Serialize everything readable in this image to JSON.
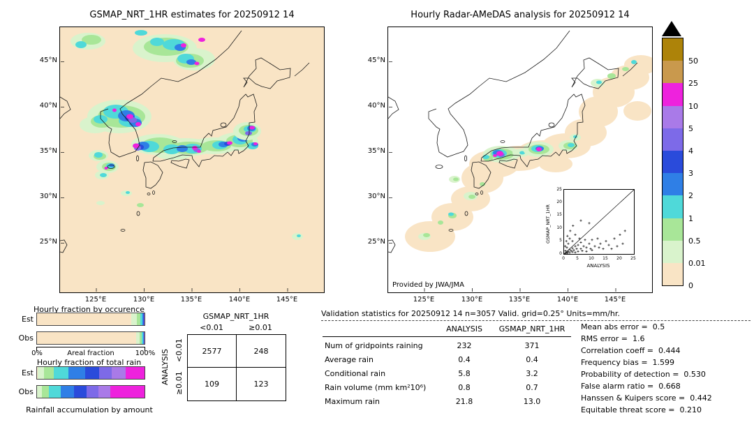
{
  "palette": {
    "trace": "#f9e4c5",
    "p001": "#d9f3cc",
    "p05": "#a8e698",
    "p1": "#4fd9d9",
    "p2": "#2f7fe6",
    "p3": "#2a4bdb",
    "p4": "#7d6ae8",
    "p5": "#a97ae8",
    "p10": "#ee22dd",
    "p25": "#c9994d",
    "p50": "#ad8309"
  },
  "left_map": {
    "title": "GSMAP_NRT_1HR estimates for 20250912 14",
    "lat_ticks": [
      "45°N",
      "40°N",
      "35°N",
      "30°N",
      "25°N"
    ],
    "lon_ticks": [
      "125°E",
      "130°E",
      "135°E",
      "140°E",
      "145°E"
    ]
  },
  "right_map": {
    "title": "Hourly Radar-AMeDAS analysis for 20250912 14",
    "credit": "Provided by JWA/JMA",
    "lat_ticks": [
      "45°N",
      "40°N",
      "35°N",
      "30°N",
      "25°N"
    ],
    "lon_ticks": [
      "125°E",
      "130°E",
      "135°E",
      "140°E",
      "145°E"
    ],
    "inset": {
      "xlabel": "ANALYSIS",
      "ylabel": "GSMAP_NRT_1HR",
      "ticks": [
        "0",
        "5",
        "10",
        "15",
        "20",
        "25"
      ]
    }
  },
  "colorbar": {
    "cells": [
      {
        "color": "#ad8309",
        "label": "50"
      },
      {
        "color": "#c9994d",
        "label": "25"
      },
      {
        "color": "#ee22dd",
        "label": "10"
      },
      {
        "color": "#a97ae8",
        "label": "5"
      },
      {
        "color": "#7d6ae8",
        "label": "4"
      },
      {
        "color": "#2a4bdb",
        "label": "3"
      },
      {
        "color": "#2f7fe6",
        "label": "2"
      },
      {
        "color": "#4fd9d9",
        "label": "1"
      },
      {
        "color": "#a8e698",
        "label": "0.5"
      },
      {
        "color": "#d9f3cc",
        "label": "0.01"
      },
      {
        "color": "#f9e4c5",
        "label": "0"
      }
    ]
  },
  "occurrence": {
    "title": "Hourly fraction by occurence",
    "est_label": "Est",
    "obs_label": "Obs",
    "axis_left": "0%",
    "axis_center": "Areal fraction",
    "axis_right": "100%"
  },
  "totalrain": {
    "title": "Hourly fraction of total rain",
    "est_label": "Est",
    "obs_label": "Obs",
    "caption": "Rainfall accumulation by amount"
  },
  "contingency": {
    "col_header": "GSMAP_NRT_1HR",
    "row_header": "ANALYSIS",
    "col_labels": [
      "<0.01",
      "≥0.01"
    ],
    "row_labels": [
      "<0.01",
      "≥0.01"
    ]
  },
  "validation": {
    "title": "Validation statistics for 20250912 14  n=3057 Valid. grid=0.25° Units=mm/hr.",
    "col_analysis": "ANALYSIS",
    "col_gsmap": "GSMAP_NRT_1HR",
    "rows": [
      {
        "label": "Num of gridpoints raining",
        "analysis": "232",
        "gsmap": "371"
      },
      {
        "label": "Average rain",
        "analysis": "0.4",
        "gsmap": "0.4"
      },
      {
        "label": "Conditional rain",
        "analysis": "5.8",
        "gsmap": "3.2"
      },
      {
        "label": "Rain volume (mm km²10⁶)",
        "analysis": "0.8",
        "gsmap": "0.7"
      },
      {
        "label": "Maximum rain",
        "analysis": "21.8",
        "gsmap": "13.0"
      }
    ],
    "stats": [
      {
        "label": "Mean abs error =",
        "value": "0.5"
      },
      {
        "label": "RMS error =",
        "value": "1.6"
      },
      {
        "label": "Correlation coeff =",
        "value": "0.444"
      },
      {
        "label": "Frequency bias =",
        "value": "1.599"
      },
      {
        "label": "Probability of detection =",
        "value": "0.530"
      },
      {
        "label": "False alarm ratio =",
        "value": "0.668"
      },
      {
        "label": "Hanssen & Kuipers score =",
        "value": "0.442"
      },
      {
        "label": "Equitable threat score =",
        "value": "0.210"
      }
    ]
  },
  "chart_data": [
    {
      "type": "heatmap",
      "title": "GSMAP_NRT_1HR estimates for 20250912 14",
      "x_ticks": [
        "125°E",
        "130°E",
        "135°E",
        "140°E",
        "145°E"
      ],
      "y_ticks": [
        "45°N",
        "40°N",
        "35°N",
        "30°N",
        "25°N"
      ],
      "extent": {
        "lon": [
          121.2,
          148.9
        ],
        "lat": [
          23.4,
          48.8
        ]
      },
      "units": "mm/hr",
      "levels": [
        0,
        0.01,
        0.5,
        1,
        2,
        3,
        4,
        5,
        10,
        25,
        50
      ],
      "level_colors": [
        "#f9e4c5",
        "#d9f3cc",
        "#a8e698",
        "#4fd9d9",
        "#2f7fe6",
        "#2a4bdb",
        "#7d6ae8",
        "#a97ae8",
        "#ee22dd",
        "#c9994d",
        "#ad8309"
      ],
      "description": "GSMaP precipitation: heavy rain clusters over Korea (~38N,126E), northern Sea of Japan (~45N,130E), and a band along 35-37N across western/central Honshu with magenta cores up to 10-25 mm/hr"
    },
    {
      "type": "heatmap",
      "title": "Hourly Radar-AMeDAS analysis for 20250912 14",
      "x_ticks": [
        "125°E",
        "130°E",
        "135°E",
        "140°E",
        "145°E"
      ],
      "y_ticks": [
        "45°N",
        "40°N",
        "35°N",
        "30°N",
        "25°N"
      ],
      "extent": {
        "lon": [
          121.2,
          148.9
        ],
        "lat": [
          23.4,
          48.8
        ]
      },
      "units": "mm/hr",
      "levels": [
        0,
        0.01,
        0.5,
        1,
        2,
        3,
        4,
        5,
        10,
        25,
        50
      ],
      "level_colors": [
        "#f9e4c5",
        "#d9f3cc",
        "#a8e698",
        "#4fd9d9",
        "#2f7fe6",
        "#2a4bdb",
        "#7d6ae8",
        "#a97ae8",
        "#ee22dd",
        "#c9994d",
        "#ad8309"
      ],
      "description": "Radar-AMeDAS analysis: trace-rain band from Okinawa northeast past Kanto, with echo cores 1-25 mm/hr over western Honshu (~34.5N,133E) and central Honshu (~35N,137E)"
    },
    {
      "type": "scatter",
      "title": "GSMAP_NRT_1HR vs ANALYSIS",
      "xlabel": "ANALYSIS",
      "ylabel": "GSMAP_NRT_1HR",
      "xlim": [
        0,
        25
      ],
      "ylim": [
        0,
        25
      ],
      "diagonal": true,
      "points": [
        [
          0.3,
          0.2
        ],
        [
          0.5,
          1.2
        ],
        [
          0.7,
          0.4
        ],
        [
          1,
          0.6
        ],
        [
          1,
          2.5
        ],
        [
          1.2,
          0.3
        ],
        [
          1.5,
          1
        ],
        [
          1.5,
          4
        ],
        [
          2,
          0.5
        ],
        [
          2,
          1.8
        ],
        [
          2,
          6
        ],
        [
          2.5,
          1.2
        ],
        [
          3,
          0.8
        ],
        [
          3,
          2.2
        ],
        [
          3,
          5
        ],
        [
          3.5,
          1.5
        ],
        [
          4,
          0.6
        ],
        [
          4,
          3
        ],
        [
          4,
          7.5
        ],
        [
          4.5,
          2
        ],
        [
          5,
          1
        ],
        [
          5,
          3.5
        ],
        [
          5.5,
          6
        ],
        [
          6,
          2
        ],
        [
          6,
          4.5
        ],
        [
          6,
          13
        ],
        [
          6.5,
          1.2
        ],
        [
          7,
          3
        ],
        [
          7.5,
          5.5
        ],
        [
          8,
          2.5
        ],
        [
          8,
          1
        ],
        [
          9,
          4
        ],
        [
          9,
          12
        ],
        [
          9.5,
          2
        ],
        [
          10,
          5.5
        ],
        [
          10,
          1.5
        ],
        [
          11,
          3
        ],
        [
          12,
          6
        ],
        [
          12.5,
          2.5
        ],
        [
          13,
          4
        ],
        [
          14,
          2
        ],
        [
          15,
          5
        ],
        [
          16,
          3.5
        ],
        [
          17,
          2
        ],
        [
          18,
          6
        ],
        [
          19,
          3
        ],
        [
          20,
          7.5
        ],
        [
          21,
          4
        ],
        [
          21.8,
          9
        ],
        [
          0.4,
          3
        ],
        [
          0.8,
          5
        ],
        [
          1.2,
          7
        ],
        [
          2.2,
          9
        ],
        [
          3.2,
          11
        ]
      ]
    },
    {
      "type": "bar",
      "stacked": true,
      "title": "Hourly fraction by occurence",
      "bins": [
        "0-0.01",
        "0.01-0.5",
        "0.5-1",
        "1-2",
        "2-3",
        "3-4",
        "4-5",
        "5-10",
        "10-25"
      ],
      "colors": [
        "#f9e4c5",
        "#d9f3cc",
        "#a8e698",
        "#4fd9d9",
        "#2f7fe6",
        "#2a4bdb",
        "#7d6ae8",
        "#a97ae8",
        "#ee22dd"
      ],
      "xlabel": "Areal fraction",
      "xlim_labels": [
        "0%",
        "100%"
      ],
      "series": [
        {
          "name": "Est",
          "values": [
            87.9,
            5.2,
            2.9,
            2.0,
            1.0,
            0.5,
            0.3,
            0.2,
            0.0
          ]
        },
        {
          "name": "Obs",
          "values": [
            92.4,
            3.2,
            1.6,
            1.2,
            0.7,
            0.4,
            0.3,
            0.15,
            0.05
          ]
        }
      ]
    },
    {
      "type": "bar",
      "stacked": true,
      "title": "Hourly fraction of total rain",
      "bins": [
        "0-0.01",
        "0.01-0.5",
        "0.5-1",
        "1-2",
        "2-3",
        "3-4",
        "4-5",
        "5-10",
        "10-25"
      ],
      "colors": [
        "#f9e4c5",
        "#d9f3cc",
        "#a8e698",
        "#4fd9d9",
        "#2f7fe6",
        "#2a4bdb",
        "#7d6ae8",
        "#a97ae8",
        "#ee22dd"
      ],
      "caption": "Rainfall accumulation by amount",
      "series": [
        {
          "name": "Est",
          "values": [
            0.5,
            6,
            9,
            14,
            15,
            13,
            12,
            13,
            17.5
          ]
        },
        {
          "name": "Obs",
          "values": [
            0.3,
            4,
            7,
            11,
            12,
            12,
            11,
            10.7,
            32
          ]
        }
      ]
    },
    {
      "type": "table",
      "title": "Contingency table (GSMAP_NRT_1HR vs ANALYSIS)",
      "columns": [
        "<0.01",
        "≥0.01"
      ],
      "rows": [
        "<0.01",
        "≥0.01"
      ],
      "values": [
        [
          2577,
          248
        ],
        [
          109,
          123
        ]
      ]
    }
  ]
}
